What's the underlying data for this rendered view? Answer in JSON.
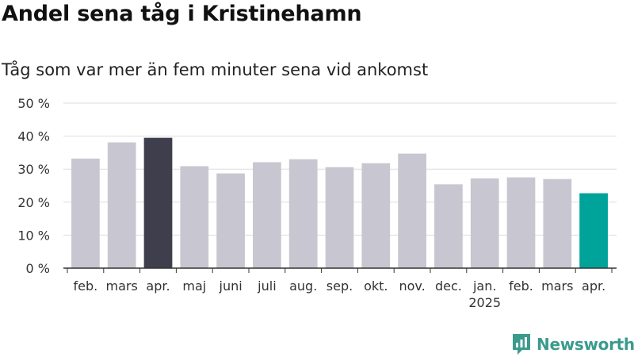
{
  "header": {
    "title": "Andel sena tåg i Kristinehamn",
    "subtitle": "Tåg som var mer än fem minuter sena vid ankomst"
  },
  "branding": {
    "logo_text": "Newsworthy",
    "logo_icon": "bar-chart-speech-bubble-icon"
  },
  "colors": {
    "bar_default": "#c8c7d1",
    "bar_highlight_prev": "#3f3e4c",
    "bar_highlight_current": "#00a39a",
    "grid": "#dddddd",
    "axis": "#333333",
    "brand": "#3a9b8c"
  },
  "chart_data": {
    "type": "bar",
    "title": "Andel sena tåg i Kristinehamn",
    "subtitle": "Tåg som var mer än fem minuter sena vid ankomst",
    "categories": [
      "feb.",
      "mars",
      "apr.",
      "maj",
      "juni",
      "juli",
      "aug.",
      "sep.",
      "okt.",
      "nov.",
      "dec.",
      "jan.",
      "feb.",
      "mars",
      "apr."
    ],
    "year_labels": [
      {
        "index": 11,
        "label": "2025"
      }
    ],
    "values": [
      33.2,
      38.1,
      39.5,
      30.9,
      28.7,
      32.1,
      33.0,
      30.6,
      31.8,
      34.7,
      25.4,
      27.2,
      27.5,
      27.0,
      22.7
    ],
    "highlight": {
      "2": "bar_highlight_prev",
      "14": "bar_highlight_current"
    },
    "ylim": [
      0,
      50
    ],
    "yticks": [
      0,
      10,
      20,
      30,
      40,
      50
    ],
    "ytick_labels": [
      "0 %",
      "10 %",
      "20 %",
      "30 %",
      "40 %",
      "50 %"
    ],
    "xlabel": "",
    "ylabel": "",
    "grid": true,
    "legend": "none"
  }
}
